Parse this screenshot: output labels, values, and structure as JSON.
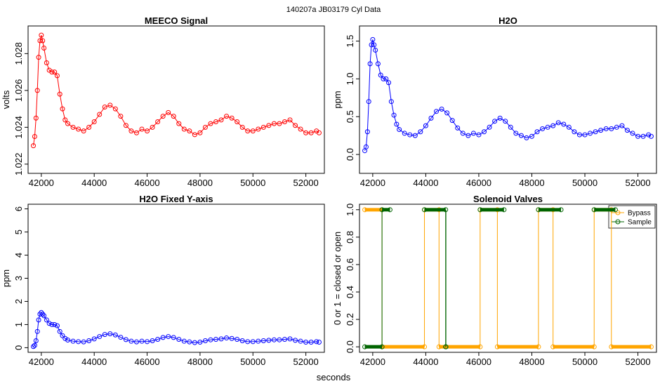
{
  "figure": {
    "suptitle": "140207a    JB03179    Cyl Data",
    "xlabel": "seconds"
  },
  "chart_data": [
    {
      "type": "scatter",
      "title": "MEECO Signal",
      "xlabel": "",
      "ylabel": "volts",
      "xlim": [
        41500,
        52700
      ],
      "ylim": [
        1.0215,
        1.0295
      ],
      "xticks": [
        42000,
        44000,
        46000,
        48000,
        50000,
        52000
      ],
      "yticks": [
        1.022,
        1.024,
        1.026,
        1.028
      ],
      "series": [
        {
          "name": "",
          "color": "#ff0000",
          "marker": "open-circle",
          "joined": true,
          "x": [
            41700,
            41750,
            41800,
            41850,
            41900,
            41950,
            42000,
            42050,
            42100,
            42200,
            42300,
            42400,
            42500,
            42600,
            42700,
            42800,
            42900,
            43000,
            43200,
            43400,
            43600,
            43800,
            44000,
            44200,
            44400,
            44600,
            44800,
            45000,
            45200,
            45400,
            45600,
            45800,
            46000,
            46200,
            46400,
            46600,
            46800,
            47000,
            47200,
            47400,
            47600,
            47800,
            48000,
            48200,
            48400,
            48600,
            48800,
            49000,
            49200,
            49400,
            49600,
            49800,
            50000,
            50200,
            50400,
            50600,
            50800,
            51000,
            51200,
            51400,
            51600,
            51800,
            52000,
            52200,
            52400,
            52500
          ],
          "y": [
            1.023,
            1.0235,
            1.0245,
            1.026,
            1.0278,
            1.0287,
            1.029,
            1.0287,
            1.0283,
            1.0275,
            1.0271,
            1.027,
            1.027,
            1.0268,
            1.0258,
            1.025,
            1.0244,
            1.0242,
            1.024,
            1.0239,
            1.0238,
            1.024,
            1.0243,
            1.0247,
            1.0251,
            1.0252,
            1.025,
            1.0246,
            1.0241,
            1.0238,
            1.0237,
            1.0239,
            1.0238,
            1.024,
            1.0243,
            1.0246,
            1.0248,
            1.0246,
            1.0242,
            1.0239,
            1.0238,
            1.0236,
            1.0237,
            1.024,
            1.0242,
            1.0243,
            1.0244,
            1.0246,
            1.0245,
            1.0243,
            1.024,
            1.0238,
            1.0238,
            1.0239,
            1.024,
            1.0241,
            1.0242,
            1.0242,
            1.0243,
            1.0244,
            1.0241,
            1.0239,
            1.0237,
            1.0237,
            1.0238,
            1.0237
          ]
        }
      ]
    },
    {
      "type": "scatter",
      "title": "H2O",
      "xlabel": "",
      "ylabel": "ppm",
      "xlim": [
        41500,
        52700
      ],
      "ylim": [
        -0.25,
        1.7
      ],
      "xticks": [
        42000,
        44000,
        46000,
        48000,
        50000,
        52000
      ],
      "yticks": [
        0.0,
        0.5,
        1.0,
        1.5
      ],
      "series": [
        {
          "name": "",
          "color": "#0000ff",
          "marker": "open-circle",
          "joined": true,
          "x": [
            41700,
            41750,
            41800,
            41850,
            41900,
            41950,
            42000,
            42050,
            42100,
            42200,
            42300,
            42400,
            42500,
            42600,
            42700,
            42800,
            42900,
            43000,
            43200,
            43400,
            43600,
            43800,
            44000,
            44200,
            44400,
            44600,
            44800,
            45000,
            45200,
            45400,
            45600,
            45800,
            46000,
            46200,
            46400,
            46600,
            46800,
            47000,
            47200,
            47400,
            47600,
            47800,
            48000,
            48200,
            48400,
            48600,
            48800,
            49000,
            49200,
            49400,
            49600,
            49800,
            50000,
            50200,
            50400,
            50600,
            50800,
            51000,
            51200,
            51400,
            51600,
            51800,
            52000,
            52200,
            52400,
            52500
          ],
          "y": [
            0.05,
            0.1,
            0.3,
            0.7,
            1.2,
            1.45,
            1.52,
            1.45,
            1.38,
            1.2,
            1.05,
            1.0,
            1.0,
            0.95,
            0.7,
            0.52,
            0.4,
            0.33,
            0.28,
            0.26,
            0.25,
            0.3,
            0.38,
            0.48,
            0.57,
            0.6,
            0.55,
            0.45,
            0.35,
            0.28,
            0.25,
            0.28,
            0.26,
            0.3,
            0.36,
            0.44,
            0.48,
            0.44,
            0.36,
            0.28,
            0.25,
            0.22,
            0.24,
            0.3,
            0.34,
            0.36,
            0.38,
            0.42,
            0.4,
            0.36,
            0.3,
            0.26,
            0.26,
            0.28,
            0.3,
            0.32,
            0.34,
            0.34,
            0.36,
            0.38,
            0.32,
            0.28,
            0.24,
            0.24,
            0.26,
            0.24
          ]
        }
      ]
    },
    {
      "type": "scatter",
      "title": "H2O Fixed Y-axis",
      "xlabel": "",
      "ylabel": "ppm",
      "xlim": [
        41500,
        52700
      ],
      "ylim": [
        -0.2,
        6.2
      ],
      "xticks": [
        42000,
        44000,
        46000,
        48000,
        50000,
        52000
      ],
      "yticks": [
        0,
        1,
        2,
        3,
        4,
        5,
        6
      ],
      "series": [
        {
          "name": "",
          "color": "#0000ff",
          "marker": "open-circle",
          "joined": true,
          "x": [
            41700,
            41750,
            41800,
            41850,
            41900,
            41950,
            42000,
            42050,
            42100,
            42200,
            42300,
            42400,
            42500,
            42600,
            42700,
            42800,
            42900,
            43000,
            43200,
            43400,
            43600,
            43800,
            44000,
            44200,
            44400,
            44600,
            44800,
            45000,
            45200,
            45400,
            45600,
            45800,
            46000,
            46200,
            46400,
            46600,
            46800,
            47000,
            47200,
            47400,
            47600,
            47800,
            48000,
            48200,
            48400,
            48600,
            48800,
            49000,
            49200,
            49400,
            49600,
            49800,
            50000,
            50200,
            50400,
            50600,
            50800,
            51000,
            51200,
            51400,
            51600,
            51800,
            52000,
            52200,
            52400,
            52500
          ],
          "y": [
            0.05,
            0.1,
            0.3,
            0.7,
            1.2,
            1.45,
            1.52,
            1.45,
            1.38,
            1.2,
            1.05,
            1.0,
            1.0,
            0.95,
            0.7,
            0.52,
            0.4,
            0.33,
            0.28,
            0.26,
            0.25,
            0.3,
            0.38,
            0.48,
            0.57,
            0.6,
            0.55,
            0.45,
            0.35,
            0.28,
            0.25,
            0.28,
            0.26,
            0.3,
            0.36,
            0.44,
            0.48,
            0.44,
            0.36,
            0.28,
            0.25,
            0.22,
            0.24,
            0.3,
            0.34,
            0.36,
            0.38,
            0.42,
            0.4,
            0.36,
            0.3,
            0.26,
            0.26,
            0.28,
            0.3,
            0.32,
            0.34,
            0.34,
            0.36,
            0.38,
            0.32,
            0.28,
            0.24,
            0.24,
            0.26,
            0.24
          ]
        }
      ]
    },
    {
      "type": "line",
      "title": "Solenoid Valves",
      "xlabel": "",
      "ylabel": "0 or 1 = closed or open",
      "xlim": [
        41500,
        52700
      ],
      "ylim": [
        -0.04,
        1.04
      ],
      "xticks": [
        42000,
        44000,
        46000,
        48000,
        50000,
        52000
      ],
      "yticks": [
        0.0,
        0.2,
        0.4,
        0.6,
        0.8,
        1.0
      ],
      "legend": {
        "position": "top-right"
      },
      "series": [
        {
          "name": "Bypass",
          "color": "#ffa500",
          "marker": "open-circle",
          "segments": [
            [
              41700,
              42350,
              1
            ],
            [
              42350,
              43950,
              0
            ],
            [
              43950,
              44500,
              1
            ],
            [
              44500,
              46050,
              0
            ],
            [
              46050,
              46700,
              1
            ],
            [
              46700,
              48250,
              0
            ],
            [
              48250,
              48800,
              1
            ],
            [
              48800,
              50350,
              0
            ],
            [
              50350,
              51000,
              1
            ],
            [
              51000,
              52500,
              0
            ]
          ]
        },
        {
          "name": "Sample",
          "color": "#006400",
          "marker": "open-circle",
          "segments": [
            [
              41700,
              42350,
              0
            ],
            [
              42350,
              42650,
              1
            ],
            [
              43950,
              44750,
              1
            ],
            [
              44750,
              44760,
              0
            ],
            [
              46050,
              46950,
              1
            ],
            [
              48250,
              49100,
              1
            ],
            [
              50350,
              51150,
              1
            ]
          ]
        }
      ]
    }
  ]
}
